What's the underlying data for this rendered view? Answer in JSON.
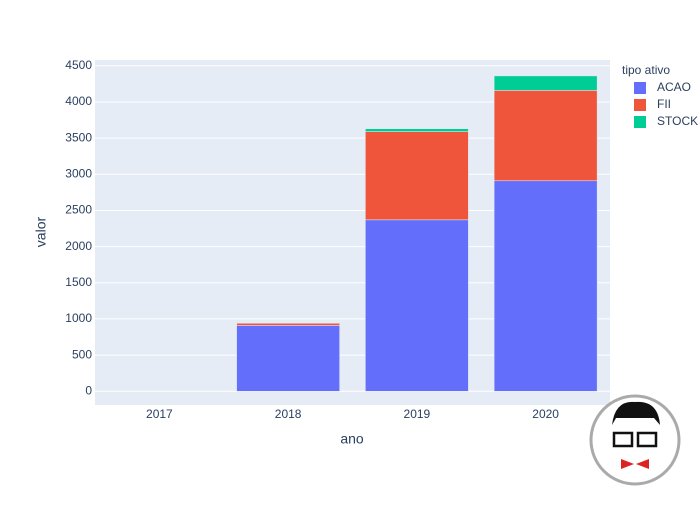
{
  "chart_data": {
    "type": "stacked_bar",
    "x_label": "ano",
    "y_label": "valor",
    "legend_title": "tipo ativo",
    "categories": [
      "2017",
      "2018",
      "2019",
      "2020"
    ],
    "series": [
      {
        "name": "ACAO",
        "color": "#636efa",
        "values": [
          0,
          910,
          2370,
          2910
        ]
      },
      {
        "name": "FII",
        "color": "#ef553b",
        "values": [
          0,
          30,
          1220,
          1250
        ]
      },
      {
        "name": "STOCK",
        "color": "#00cc96",
        "values": [
          0,
          0,
          40,
          200
        ]
      }
    ],
    "ylim": [
      -190,
      4580
    ],
    "yticks": [
      0,
      500,
      1000,
      1500,
      2000,
      2500,
      3000,
      3500,
      4000,
      4500
    ],
    "grid": true
  }
}
